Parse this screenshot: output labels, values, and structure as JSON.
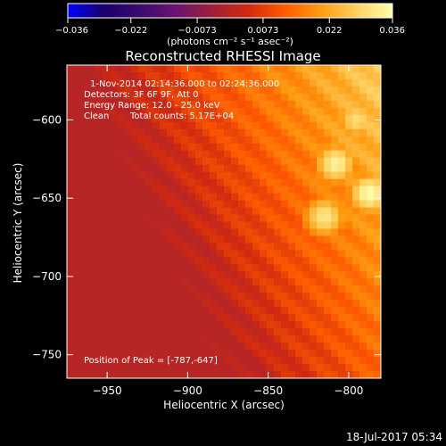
{
  "chart_data": {
    "type": "heatmap",
    "title": "Reconstructed RHESSI Image",
    "xlabel": "Heliocentric X (arcsec)",
    "ylabel": "Heliocentric Y (arcsec)",
    "xlim": [
      -975,
      -780
    ],
    "ylim": [
      -765,
      -565
    ],
    "x_ticks": [
      {
        "value": -950,
        "label": "−950"
      },
      {
        "value": -900,
        "label": "−900"
      },
      {
        "value": -850,
        "label": "−850"
      },
      {
        "value": -800,
        "label": "−800"
      }
    ],
    "y_ticks": [
      {
        "value": -600,
        "label": "−600"
      },
      {
        "value": -650,
        "label": "−650"
      },
      {
        "value": -700,
        "label": "−700"
      },
      {
        "value": -750,
        "label": "−750"
      }
    ],
    "colorbar": {
      "range": [
        -0.036,
        0.036
      ],
      "ticks": [
        {
          "value": -0.036,
          "label": "−0.036"
        },
        {
          "value": -0.022,
          "label": "−0.022"
        },
        {
          "value": -0.0073,
          "label": "−0.0073"
        },
        {
          "value": 0.0073,
          "label": "0.0073"
        },
        {
          "value": 0.022,
          "label": "0.022"
        },
        {
          "value": 0.036,
          "label": "0.036"
        }
      ],
      "unit_label": "(photons cm⁻² s⁻¹ asec⁻²)",
      "colormap": [
        "#0000ff",
        "#1a006e",
        "#3b0a6e",
        "#6a1470",
        "#a01f3a",
        "#d02a10",
        "#ff5a00",
        "#ff9a10",
        "#ffd060",
        "#ffffb0"
      ]
    },
    "annotations": {
      "time_range": "1-Nov-2014 02:14:36.000 to 02:24:36.000",
      "detectors": "Detectors: 3F 6F 9F, Att 0",
      "energy_range": "Energy Range: 12.0 - 25.0 keV",
      "clean": "Clean",
      "total_counts": "Total counts: 5.17E+04",
      "peak": "Position of Peak = [-787,-647]"
    },
    "peak_position": [
      -787,
      -647
    ],
    "sources": [
      {
        "x": -787,
        "y": -647,
        "value": 0.036
      },
      {
        "x": -808,
        "y": -628,
        "value": 0.034
      },
      {
        "x": -815,
        "y": -662,
        "value": 0.032
      },
      {
        "x": -795,
        "y": -600,
        "value": 0.03
      }
    ]
  },
  "footer": {
    "date": "18-Jul-2017 05:34"
  }
}
